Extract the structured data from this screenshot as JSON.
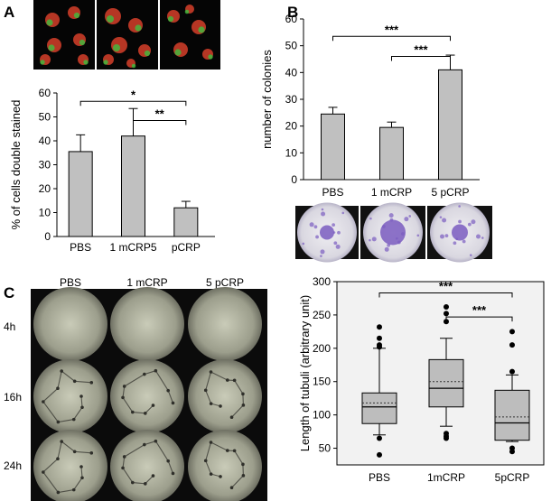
{
  "panels": {
    "A": {
      "letter": "A"
    },
    "B": {
      "letter": "B"
    },
    "C": {
      "letter": "C"
    }
  },
  "micrographs": {
    "A_top": [
      "fluorescence-cells-1",
      "fluorescence-cells-2",
      "fluorescence-cells-3"
    ],
    "B_bottom": [
      "colony-stain-pbs",
      "colony-stain-1mcrp",
      "colony-stain-5pcrp"
    ],
    "C_grid": {
      "columns": [
        "PBS",
        "1 mCRP",
        "5 pCRP"
      ],
      "rows": [
        "4h",
        "16h",
        "24h"
      ]
    }
  },
  "colors": {
    "bar_fill": "#c0c0c0",
    "box_fill": "#bdbdbd",
    "plot_bg_C": "#f2f2f2",
    "stain_purple": "#7a5cc0",
    "fluor_red": "#d6402a",
    "fluor_green": "#3fbf3f"
  },
  "chart_data": [
    {
      "id": "A",
      "type": "bar",
      "categories": [
        "PBS",
        "1 mCRP5",
        "pCRP"
      ],
      "values": [
        35.5,
        42,
        12
      ],
      "errors": [
        7,
        11.5,
        2.7
      ],
      "ylabel": "% of cells double stained",
      "ylim": [
        0,
        60
      ],
      "yticks": [
        "0",
        "10",
        "20",
        "30",
        "40",
        "50",
        "60"
      ],
      "significance": [
        {
          "from": 0,
          "to": 2,
          "label": "*",
          "y": 56.5
        },
        {
          "from": 1,
          "to": 2,
          "label": "**",
          "y": 48.5
        }
      ]
    },
    {
      "id": "B",
      "type": "bar",
      "categories": [
        "PBS",
        "1 mCRP",
        "5 pCRP"
      ],
      "values": [
        24.5,
        19.5,
        41
      ],
      "errors": [
        2.5,
        2,
        5.5
      ],
      "ylabel": "number of colonies",
      "ylim": [
        0,
        60
      ],
      "yticks": [
        "0",
        "10",
        "20",
        "30",
        "40",
        "50",
        "60"
      ],
      "significance": [
        {
          "from": 0,
          "to": 2,
          "label": "***",
          "y": 53.5
        },
        {
          "from": 1,
          "to": 2,
          "label": "***",
          "y": 46
        }
      ]
    },
    {
      "id": "C",
      "type": "box",
      "categories": [
        "PBS",
        "1mCRP",
        "5pCRP"
      ],
      "ylabel": "Length of tubuli (arbitrary unit)",
      "ylim": [
        25,
        300
      ],
      "yticks": [
        "50",
        "100",
        "150",
        "200",
        "250",
        "300"
      ],
      "tick_values": [
        50,
        100,
        150,
        200,
        250,
        300
      ],
      "boxes": [
        {
          "whisker_low": 70,
          "q1": 87,
          "median": 112,
          "mean": 118,
          "q3": 133,
          "whisker_high": 200,
          "outliers": [
            40,
            65,
            202,
            205,
            215,
            232
          ]
        },
        {
          "whisker_low": 83,
          "q1": 112,
          "median": 140,
          "mean": 150,
          "q3": 183,
          "whisker_high": 215,
          "outliers": [
            65,
            68,
            72,
            240,
            252,
            262
          ]
        },
        {
          "whisker_low": 60,
          "q1": 62,
          "median": 88,
          "mean": 97,
          "q3": 137,
          "whisker_high": 160,
          "outliers": [
            45,
            50,
            165,
            205,
            225
          ]
        }
      ],
      "significance": [
        {
          "from": 0,
          "to": 2,
          "label": "***",
          "y": 283
        },
        {
          "from": 1,
          "to": 2,
          "label": "***",
          "y": 247
        }
      ]
    }
  ]
}
